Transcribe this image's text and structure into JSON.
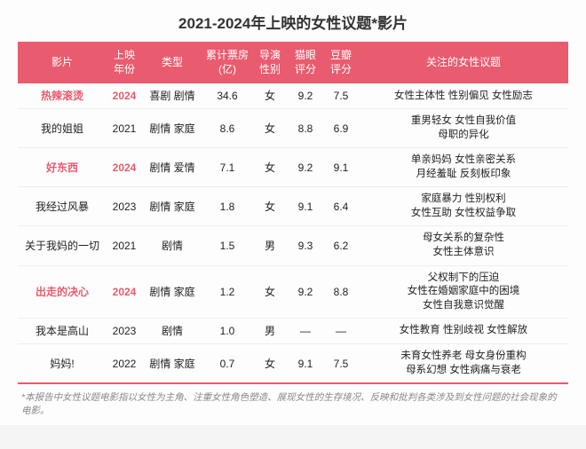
{
  "title": "2021-2024年上映的女性议题*影片",
  "header_bg": "#e95b6e",
  "highlight_color": "#e95b6e",
  "columns": [
    "影片",
    "上映\n年份",
    "类型",
    "累计票房\n(亿)",
    "导演\n性别",
    "猫眼\n评分",
    "豆瓣\n评分",
    "关注的女性议题"
  ],
  "rows": [
    {
      "highlight": true,
      "film": "热辣滚烫",
      "year": "2024",
      "type": "喜剧 剧情",
      "box": "34.6",
      "director": "女",
      "cat": "9.2",
      "douban": "7.5",
      "topics": "女性主体性 性别偏见 女性励志"
    },
    {
      "highlight": false,
      "film": "我的姐姐",
      "year": "2021",
      "type": "剧情 家庭",
      "box": "8.6",
      "director": "女",
      "cat": "8.8",
      "douban": "6.9",
      "topics": "重男轻女 女性自我价值\n母职的异化"
    },
    {
      "highlight": true,
      "film": "好东西",
      "year": "2024",
      "type": "剧情 爱情",
      "box": "7.1",
      "director": "女",
      "cat": "9.2",
      "douban": "9.1",
      "topics": "单亲妈妈 女性亲密关系\n月经羞耻 反刻板印象"
    },
    {
      "highlight": false,
      "film": "我经过风暴",
      "year": "2023",
      "type": "剧情 家庭",
      "box": "1.8",
      "director": "女",
      "cat": "9.1",
      "douban": "6.4",
      "topics": "家庭暴力 性别权利\n女性互助 女性权益争取"
    },
    {
      "highlight": false,
      "film": "关于我妈的一切",
      "year": "2021",
      "type": "剧情",
      "box": "1.5",
      "director": "男",
      "cat": "9.3",
      "douban": "6.2",
      "topics": "母女关系的复杂性\n女性主体意识"
    },
    {
      "highlight": true,
      "film": "出走的决心",
      "year": "2024",
      "type": "剧情 家庭",
      "box": "1.2",
      "director": "女",
      "cat": "9.2",
      "douban": "8.8",
      "topics": "父权制下的压迫\n女性在婚姻家庭中的困境\n女性自我意识觉醒"
    },
    {
      "highlight": false,
      "film": "我本是高山",
      "year": "2023",
      "type": "剧情",
      "box": "1.0",
      "director": "男",
      "cat": "—",
      "douban": "—",
      "topics": "女性教育 性别歧视 女性解放"
    },
    {
      "highlight": false,
      "film": "妈妈!",
      "year": "2022",
      "type": "剧情 家庭",
      "box": "0.7",
      "director": "女",
      "cat": "9.1",
      "douban": "7.5",
      "topics": "未育女性养老 母女身份重构\n母系幻想 女性病痛与衰老"
    }
  ],
  "footnote": "*本报告中女性议题电影指以女性为主角、注重女性角色塑造、展现女性的生存境况、反映和批判各类涉及到女性问题的社会现象的电影。"
}
